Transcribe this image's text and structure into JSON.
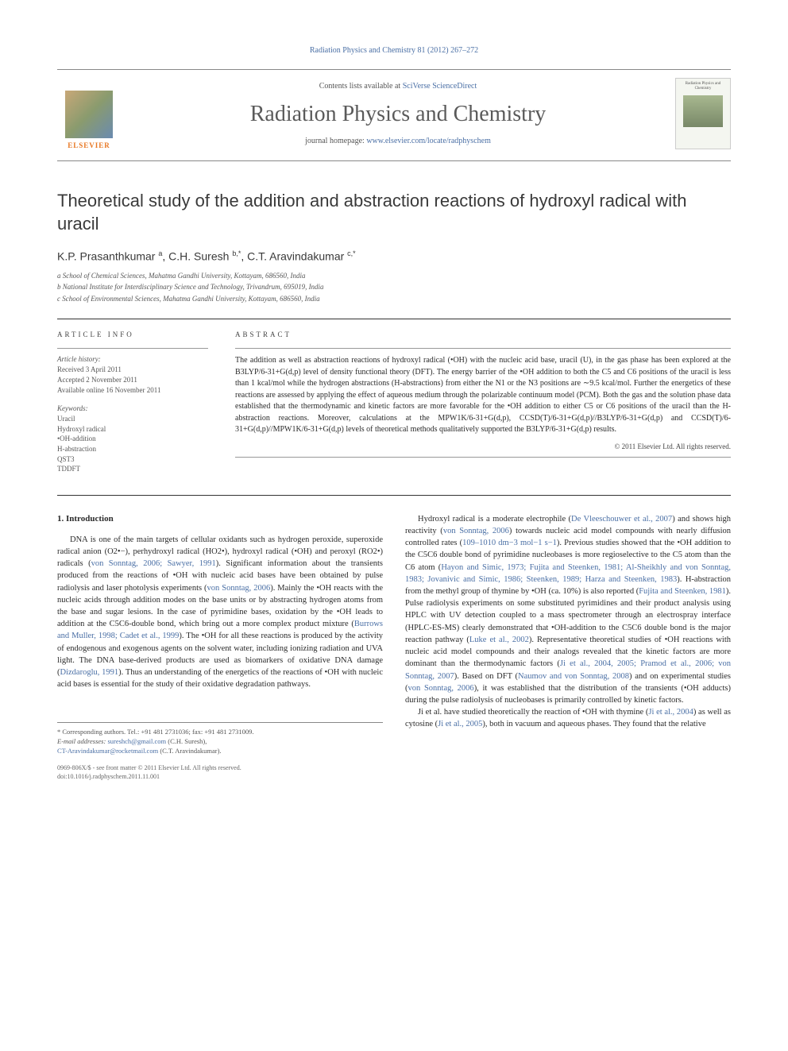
{
  "header": {
    "citation": "Radiation Physics and Chemistry 81 (2012) 267–272",
    "contents_prefix": "Contents lists available at ",
    "contents_link": "SciVerse ScienceDirect",
    "journal_name": "Radiation Physics and Chemistry",
    "homepage_prefix": "journal homepage: ",
    "homepage_url": "www.elsevier.com/locate/radphyschem",
    "publisher_logo_text": "ELSEVIER",
    "cover_text": "Radiation Physics and Chemistry"
  },
  "article": {
    "title": "Theoretical study of the addition and abstraction reactions of hydroxyl radical with uracil",
    "authors_html": "K.P. Prasanthkumar <sup>a</sup>, C.H. Suresh <sup>b,*</sup>, C.T. Aravindakumar <sup>c,*</sup>",
    "affiliations": [
      "a School of Chemical Sciences, Mahatma Gandhi University, Kottayam, 686560, India",
      "b National Institute for Interdisciplinary Science and Technology, Trivandrum, 695019, India",
      "c School of Environmental Sciences, Mahatma Gandhi University, Kottayam, 686560, India"
    ]
  },
  "info": {
    "article_info_label": "ARTICLE INFO",
    "abstract_label": "ABSTRACT",
    "history_label": "Article history:",
    "history": [
      "Received 3 April 2011",
      "Accepted 2 November 2011",
      "Available online 16 November 2011"
    ],
    "keywords_label": "Keywords:",
    "keywords": [
      "Uracil",
      "Hydroxyl radical",
      "•OH-addition",
      "H-abstraction",
      "QST3",
      "TDDFT"
    ]
  },
  "abstract": {
    "text": "The addition as well as abstraction reactions of hydroxyl radical (•OH) with the nucleic acid base, uracil (U), in the gas phase has been explored at the B3LYP/6-31+G(d,p) level of density functional theory (DFT). The energy barrier of the •OH addition to both the C5 and C6 positions of the uracil is less than 1 kcal/mol while the hydrogen abstractions (H-abstractions) from either the N1 or the N3 positions are ∼9.5 kcal/mol. Further the energetics of these reactions are assessed by applying the effect of aqueous medium through the polarizable continuum model (PCM). Both the gas and the solution phase data established that the thermodynamic and kinetic factors are more favorable for the •OH addition to either C5 or C6 positions of the uracil than the H-abstraction reactions. Moreover, calculations at the MPW1K/6-31+G(d,p), CCSD(T)/6-31+G(d,p)//B3LYP/6-31+G(d,p) and CCSD(T)/6-31+G(d,p)//MPW1K/6-31+G(d,p) levels of theoretical methods qualitatively supported the B3LYP/6-31+G(d,p) results.",
    "copyright": "© 2011 Elsevier Ltd. All rights reserved."
  },
  "body": {
    "intro_heading": "1. Introduction",
    "col1_p1": "DNA is one of the main targets of cellular oxidants such as hydrogen peroxide, superoxide radical anion (O2•−), perhydroxyl radical (HO2•), hydroxyl radical (•OH) and peroxyl (RO2•) radicals (von Sonntag, 2006; Sawyer, 1991). Significant information about the transients produced from the reactions of •OH with nucleic acid bases have been obtained by pulse radiolysis and laser photolysis experiments (von Sonntag, 2006). Mainly the •OH reacts with the nucleic acids through addition modes on the base units or by abstracting hydrogen atoms from the base and sugar lesions. In the case of pyrimidine bases, oxidation by the •OH leads to addition at the C5C6-double bond, which bring out a more complex product mixture (Burrows and Muller, 1998; Cadet et al., 1999). The •OH for all these reactions is produced by the activity of endogenous and exogenous agents on the solvent water, including ionizing radiation and UVA light. The DNA base-derived products are used as biomarkers of oxidative DNA damage (Dizdaroglu, 1991). Thus an understanding of the energetics of the reactions of •OH with nucleic acid bases is essential for the study of their oxidative degradation pathways.",
    "col2_p1": "Hydroxyl radical is a moderate electrophile (De Vleeschouwer et al., 2007) and shows high reactivity (von Sonntag, 2006) towards nucleic acid model compounds with nearly diffusion controlled rates (109–1010 dm−3 mol−1 s−1). Previous studies showed that the •OH addition to the C5C6 double bond of pyrimidine nucleobases is more regioselective to the C5 atom than the C6 atom (Hayon and Simic, 1973; Fujita and Steenken, 1981; Al-Sheikhly and von Sonntag, 1983; Jovanivic and Simic, 1986; Steenken, 1989; Harza and Steenken, 1983). H-abstraction from the methyl group of thymine by •OH (ca. 10%) is also reported (Fujita and Steenken, 1981). Pulse radiolysis experiments on some substituted pyrimidines and their product analysis using HPLC with UV detection coupled to a mass spectrometer through an electrospray interface (HPLC-ES-MS) clearly demonstrated that •OH-addition to the C5C6 double bond is the major reaction pathway (Luke et al., 2002). Representative theoretical studies of •OH reactions with nucleic acid model compounds and their analogs revealed that the kinetic factors are more dominant than the thermodynamic factors (Ji et al., 2004, 2005; Pramod et al., 2006; von Sonntag, 2007). Based on DFT (Naumov and von Sonntag, 2008) and on experimental studies (von Sonntag, 2006), it was established that the distribution of the transients (•OH adducts) during the pulse radiolysis of nucleobases is primarily controlled by kinetic factors.",
    "col2_p2": "Ji et al. have studied theoretically the reaction of •OH with thymine (Ji et al., 2004) as well as cytosine (Ji et al., 2005), both in vacuum and aqueous phases. They found that the relative"
  },
  "footer": {
    "corr_label": "* Corresponding authors. Tel.: +91 481 2731036; fax: +91 481 2731009.",
    "email_label": "E-mail addresses: ",
    "email1": "sureshch@gmail.com",
    "email1_name": " (C.H. Suresh),",
    "email2": "CT-Aravindakumar@rocketmail.com",
    "email2_name": " (C.T. Aravindakumar).",
    "pub_line1": "0969-806X/$ - see front matter © 2011 Elsevier Ltd. All rights reserved.",
    "pub_line2": "doi:10.1016/j.radphyschem.2011.11.001"
  },
  "colors": {
    "link": "#4a6fa5",
    "text": "#2a2a2a",
    "muted": "#555555",
    "orange": "#e87722"
  }
}
